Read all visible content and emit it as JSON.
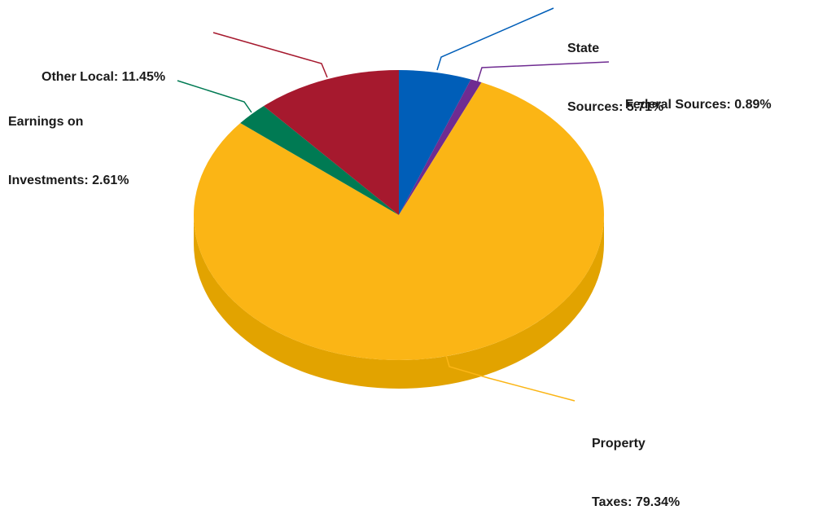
{
  "chart_data": {
    "type": "pie",
    "title": "",
    "style": "3d",
    "start_angle_deg": 0,
    "direction": "clockwise",
    "slices": [
      {
        "label_lines": [
          "State",
          "Sources: 5.71%"
        ],
        "value": 5.71,
        "color": "#005eb8"
      },
      {
        "label_lines": [
          "Federal Sources: 0.89%"
        ],
        "value": 0.89,
        "color": "#6f2c91"
      },
      {
        "label_lines": [
          "Property",
          "Taxes: 79.34%"
        ],
        "value": 79.34,
        "color": "#fbb515"
      },
      {
        "label_lines": [
          "Earnings on",
          "Investments: 2.61%"
        ],
        "value": 2.61,
        "color": "#007a53"
      },
      {
        "label_lines": [
          "Other Local: 11.45%"
        ],
        "value": 11.45,
        "color": "#a6192e"
      }
    ],
    "side_color": "#e2a300"
  }
}
